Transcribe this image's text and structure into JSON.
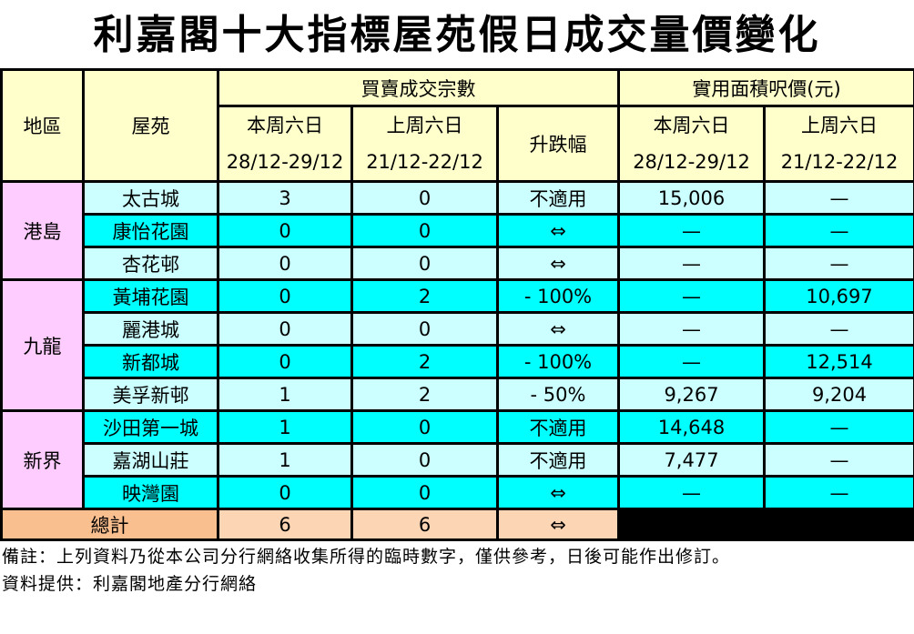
{
  "title": "利嘉閣十大指標屋苑假日成交量價變化",
  "header": {
    "region": "地區",
    "estate": "屋苑",
    "group_transactions": "買賣成交宗數",
    "group_price": "實用面積呎價(元)",
    "this_week": "本周六日",
    "this_week_dates": "28/12-29/12",
    "last_week": "上周六日",
    "last_week_dates": "21/12-22/12",
    "change": "升跌幅"
  },
  "regions": [
    {
      "name": "港島",
      "rows": [
        {
          "estate": "太古城",
          "tx_this": "3",
          "tx_last": "0",
          "change": "不適用",
          "price_this": "15,006",
          "price_last": "—"
        },
        {
          "estate": "康怡花園",
          "tx_this": "0",
          "tx_last": "0",
          "change": "⇔",
          "price_this": "—",
          "price_last": "—"
        },
        {
          "estate": "杏花邨",
          "tx_this": "0",
          "tx_last": "0",
          "change": "⇔",
          "price_this": "—",
          "price_last": "—"
        }
      ]
    },
    {
      "name": "九龍",
      "rows": [
        {
          "estate": "黃埔花園",
          "tx_this": "0",
          "tx_last": "2",
          "change": "- 100%",
          "price_this": "—",
          "price_last": "10,697"
        },
        {
          "estate": "麗港城",
          "tx_this": "0",
          "tx_last": "0",
          "change": "⇔",
          "price_this": "—",
          "price_last": "—"
        },
        {
          "estate": "新都城",
          "tx_this": "0",
          "tx_last": "2",
          "change": "- 100%",
          "price_this": "—",
          "price_last": "12,514"
        },
        {
          "estate": "美孚新邨",
          "tx_this": "1",
          "tx_last": "2",
          "change": "- 50%",
          "price_this": "9,267",
          "price_last": "9,204"
        }
      ]
    },
    {
      "name": "新界",
      "rows": [
        {
          "estate": "沙田第一城",
          "tx_this": "1",
          "tx_last": "0",
          "change": "不適用",
          "price_this": "14,648",
          "price_last": "—"
        },
        {
          "estate": "嘉湖山莊",
          "tx_this": "1",
          "tx_last": "0",
          "change": "不適用",
          "price_this": "7,477",
          "price_last": "—"
        },
        {
          "estate": "映灣園",
          "tx_this": "0",
          "tx_last": "0",
          "change": "⇔",
          "price_this": "—",
          "price_last": "—"
        }
      ]
    }
  ],
  "total": {
    "label": "總計",
    "tx_this": "6",
    "tx_last": "6",
    "change": "⇔"
  },
  "notes": {
    "remark": "備註：上列資料乃從本公司分行網絡收集所得的臨時數字，僅供參考，日後可能作出修訂。",
    "source": "資料提供：利嘉閣地產分行網絡"
  },
  "colors": {
    "header": "#ffffcc",
    "region": "#ffccff",
    "row_light": "#ccffff",
    "row_dark": "#00ffff",
    "total_label": "#fabf8f",
    "total": "#fcd5b4"
  }
}
